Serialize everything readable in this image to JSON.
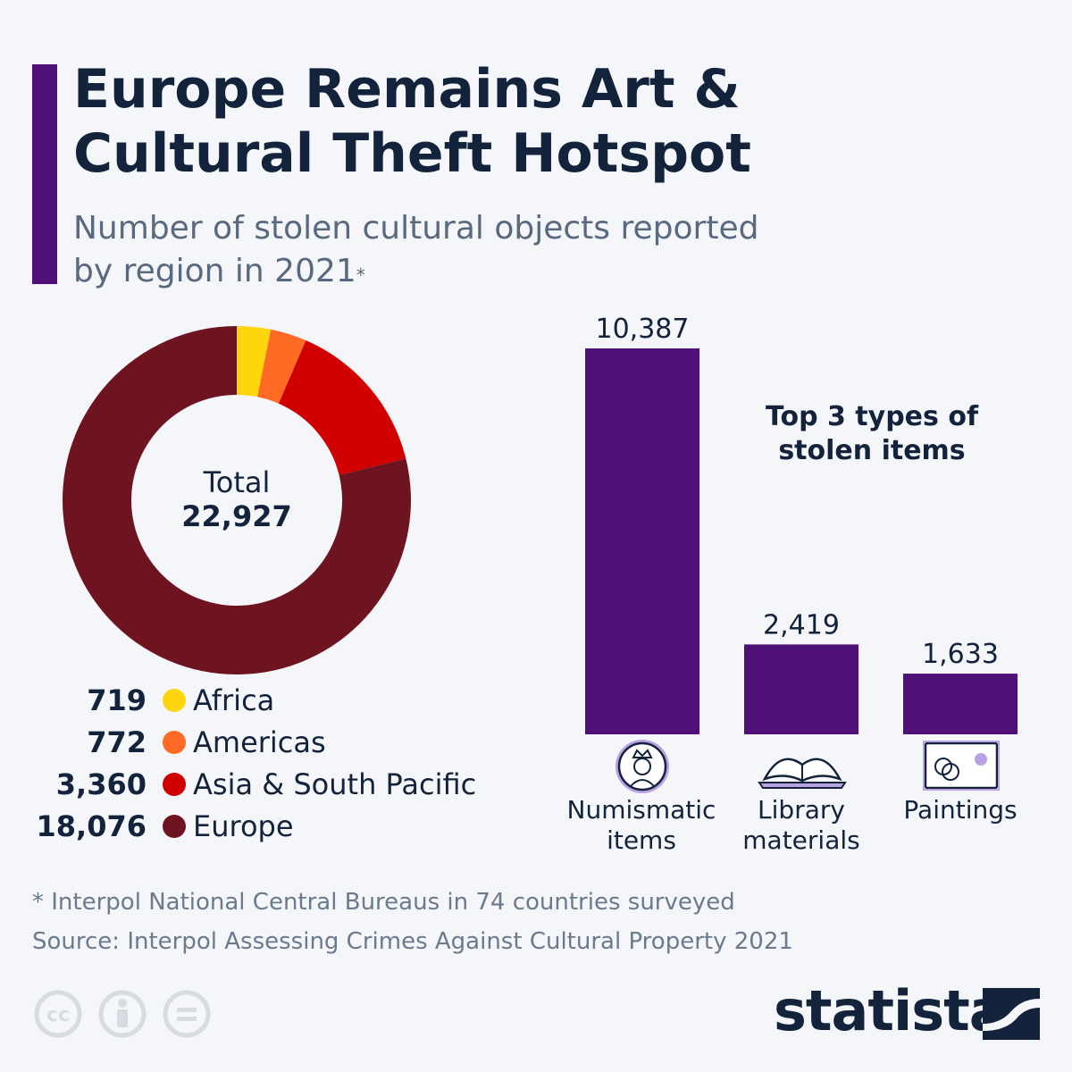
{
  "header": {
    "title_line1": "Europe Remains Art &",
    "title_line2": "Cultural Theft Hotspot",
    "subtitle_line1": "Number of stolen cultural objects reported",
    "subtitle_line2": "by region in 2021",
    "subtitle_marker": "*"
  },
  "colors": {
    "accent": "#4f1077",
    "africa": "#ffd50d",
    "americas": "#ff6a24",
    "asia": "#d10000",
    "europe": "#6e1420",
    "bar": "#4f1077",
    "text": "#14233c"
  },
  "chart_data": [
    {
      "type": "pie",
      "variant": "donut",
      "center_label": "Total",
      "center_value": "22,927",
      "total": 22927,
      "slices": [
        {
          "name": "Africa",
          "value": 719,
          "label": "719",
          "color": "#ffd50d"
        },
        {
          "name": "Americas",
          "value": 772,
          "label": "772",
          "color": "#ff6a24"
        },
        {
          "name": "Asia & South Pacific",
          "value": 3360,
          "label": "3,360",
          "color": "#d10000"
        },
        {
          "name": "Europe",
          "value": 18076,
          "label": "18,076",
          "color": "#6e1420"
        }
      ],
      "legend_position": "bottom"
    },
    {
      "type": "bar",
      "title_line1": "Top 3 types of",
      "title_line2": "stolen items",
      "categories": [
        {
          "line1": "Numismatic",
          "line2": "items",
          "icon": "coin-icon"
        },
        {
          "line1": "Library",
          "line2": "materials",
          "icon": "book-icon"
        },
        {
          "line1": "Paintings",
          "line2": "",
          "icon": "painting-icon"
        }
      ],
      "values": [
        10387,
        2419,
        1633
      ],
      "value_labels": [
        "10,387",
        "2,419",
        "1,633"
      ],
      "ylim": [
        0,
        10387
      ],
      "grid": false
    }
  ],
  "footer": {
    "note": "* Interpol National Central Bureaus in 74 countries surveyed",
    "source": "Source: Interpol Assessing Crimes Against Cultural Property 2021",
    "brand": "statista",
    "license_icons": [
      "cc-icon",
      "attribution-icon",
      "no-derivatives-icon"
    ]
  }
}
